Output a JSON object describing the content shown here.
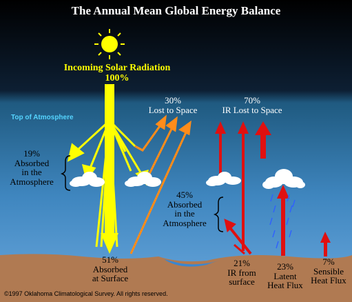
{
  "title": "The Annual Mean Global Energy Balance",
  "labels": {
    "top_of_atmosphere": "Top of Atmosphere",
    "incoming_solar": "Incoming Solar Radiation\n100%",
    "lost_to_space": "30%\nLost to Space",
    "ir_lost_to_space": "70%\nIR Lost to Space",
    "absorbed_atmosphere_solar": "19%\nAbsorbed\nin the\nAtmosphere",
    "absorbed_atmosphere_ir": "45%\nAbsorbed\nin the\nAtmosphere",
    "absorbed_surface": "51%\nAbsorbed\nat Surface",
    "ir_from_surface": "21%\nIR from\nsurface",
    "latent_heat": "23%\nLatent\nHeat Flux",
    "sensible_heat": "7%\nSensible\nHeat Flux"
  },
  "copyright": "©1997 Oklahoma Climatological Survey.  All rights reserved.",
  "colors": {
    "solar": "#ffff00",
    "reflected": "#ff8c1a",
    "infrared": "#e01010",
    "rain": "#3060ff",
    "sky_top": "#000000",
    "sky_bottom": "#5f9ed8",
    "ground": "#b07a52"
  }
}
